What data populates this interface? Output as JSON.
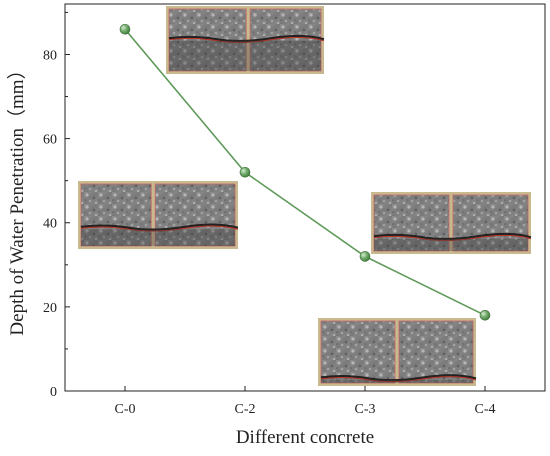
{
  "chart_data": {
    "type": "line",
    "title": "",
    "xlabel": "Different concrete",
    "ylabel": "Depth of Water Penetration（mm）",
    "categories": [
      "C-0",
      "C-2",
      "C-3",
      "C-4"
    ],
    "series": [
      {
        "values": [
          86,
          52,
          32,
          18
        ]
      }
    ],
    "ylim": [
      0,
      92
    ],
    "yticks": [
      0,
      20,
      40,
      60,
      80
    ],
    "grid": false,
    "legend": "none",
    "colors": {
      "line": "#5f9a5a",
      "marker": "#6fa86a",
      "marker_edge": "#3e6e3a",
      "axis": "#222222"
    },
    "annotations": [
      {
        "type": "specimen-photo",
        "for_category": "C-0"
      },
      {
        "type": "specimen-photo",
        "for_category": "C-2"
      },
      {
        "type": "specimen-photo",
        "for_category": "C-3"
      },
      {
        "type": "specimen-photo",
        "for_category": "C-4"
      }
    ]
  }
}
